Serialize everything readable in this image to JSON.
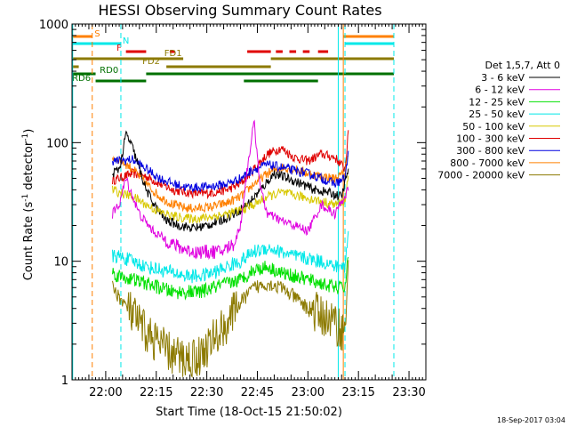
{
  "chart_data": {
    "type": "line",
    "title": "HESSI Observing Summary Count Rates",
    "xlabel": "Start Time (18-Oct-15 21:50:02)",
    "ylabel_main": "Count Rate (s",
    "ylabel_sup1": "-1",
    "ylabel_mid": " detector",
    "ylabel_sup2": "-1",
    "ylabel_end": ")",
    "footer": "18-Sep-2017 03:04",
    "x_start_min": 0,
    "x_end_min": 105,
    "x_ticks": [
      {
        "t": 10,
        "label": "22:00"
      },
      {
        "t": 25,
        "label": "22:15"
      },
      {
        "t": 40,
        "label": "22:30"
      },
      {
        "t": 55,
        "label": "22:45"
      },
      {
        "t": 70,
        "label": "23:00"
      },
      {
        "t": 85,
        "label": "23:15"
      },
      {
        "t": 100,
        "label": "23:30"
      }
    ],
    "y_scale": "log",
    "ylim": [
      1,
      1000
    ],
    "y_ticks": [
      {
        "v": 1,
        "label": "1"
      },
      {
        "v": 10,
        "label": "10"
      },
      {
        "v": 100,
        "label": "100"
      },
      {
        "v": 1000,
        "label": "1000"
      }
    ],
    "legend": {
      "title": "Det 1,5,7, Att 0",
      "position": "right",
      "entries": [
        {
          "label": "3 - 6 keV",
          "color": "#000000"
        },
        {
          "label": "6 - 12 keV",
          "color": "#e000e0"
        },
        {
          "label": "12 - 25 keV",
          "color": "#00e000"
        },
        {
          "label": "25 - 50 keV",
          "color": "#00e8e8"
        },
        {
          "label": "50 - 100 keV",
          "color": "#d8c800"
        },
        {
          "label": "100 - 300 keV",
          "color": "#e00000"
        },
        {
          "label": "300 - 800 keV",
          "color": "#0000e0"
        },
        {
          "label": "800 - 7000 keV",
          "color": "#ff8000"
        },
        {
          "label": "7000 - 20000 keV",
          "color": "#8c7a00"
        }
      ]
    },
    "series": [
      {
        "color": "#e00000",
        "t": [
          12,
          14,
          18,
          22,
          26,
          30,
          34,
          38,
          42,
          46,
          50,
          54,
          58,
          62,
          66,
          70,
          74,
          78,
          81,
          82
        ],
        "v": [
          48,
          50,
          55,
          52,
          45,
          40,
          38,
          37,
          38,
          40,
          45,
          60,
          80,
          90,
          75,
          70,
          80,
          75,
          60,
          120
        ]
      },
      {
        "color": "#ff8000",
        "t": [
          12,
          14,
          18,
          22,
          26,
          30,
          34,
          38,
          42,
          46,
          50,
          54,
          58,
          62,
          66,
          70,
          74,
          78,
          81,
          82
        ],
        "v": [
          75,
          72,
          60,
          45,
          35,
          30,
          28,
          28,
          29,
          31,
          35,
          45,
          55,
          62,
          60,
          55,
          52,
          50,
          55,
          85
        ]
      },
      {
        "color": "#0000e0",
        "t": [
          12,
          14,
          18,
          22,
          26,
          30,
          34,
          38,
          42,
          46,
          50,
          54,
          58,
          62,
          66,
          70,
          74,
          78,
          81,
          82
        ],
        "v": [
          70,
          70,
          72,
          60,
          50,
          45,
          42,
          42,
          43,
          45,
          50,
          60,
          65,
          62,
          58,
          55,
          50,
          45,
          50,
          80
        ]
      },
      {
        "color": "#000000",
        "t": [
          12,
          14,
          15,
          16,
          18,
          20,
          22,
          25,
          28,
          32,
          36,
          40,
          44,
          48,
          52,
          56,
          60,
          64,
          68,
          72,
          76,
          80,
          82
        ],
        "v": [
          55,
          60,
          80,
          120,
          90,
          60,
          40,
          28,
          22,
          20,
          19,
          20,
          22,
          25,
          30,
          40,
          55,
          50,
          45,
          40,
          38,
          35,
          60
        ]
      },
      {
        "color": "#d8c800",
        "t": [
          12,
          14,
          18,
          22,
          26,
          30,
          34,
          38,
          42,
          46,
          50,
          54,
          58,
          62,
          66,
          70,
          74,
          78,
          81,
          82
        ],
        "v": [
          40,
          38,
          35,
          30,
          26,
          24,
          23,
          23,
          24,
          25,
          27,
          30,
          35,
          38,
          36,
          34,
          32,
          30,
          32,
          55
        ]
      },
      {
        "color": "#e000e0",
        "t": [
          12,
          14,
          16,
          18,
          20,
          24,
          28,
          32,
          36,
          40,
          44,
          48,
          50,
          52,
          54,
          56,
          58,
          62,
          66,
          70,
          74,
          78,
          82
        ],
        "v": [
          25,
          30,
          50,
          35,
          25,
          18,
          15,
          13,
          12,
          12,
          12,
          14,
          20,
          60,
          150,
          40,
          25,
          22,
          20,
          18,
          30,
          25,
          40
        ]
      },
      {
        "color": "#00e8e8",
        "t": [
          12,
          14,
          18,
          22,
          26,
          30,
          34,
          38,
          42,
          46,
          50,
          54,
          58,
          62,
          66,
          70,
          74,
          78,
          81,
          82
        ],
        "v": [
          11,
          11,
          10,
          9,
          8.5,
          8,
          7.5,
          7.5,
          8,
          9,
          10,
          12,
          13,
          12,
          11,
          10.5,
          10,
          9,
          9,
          18
        ]
      },
      {
        "color": "#00e000",
        "t": [
          12,
          14,
          18,
          22,
          26,
          30,
          34,
          38,
          42,
          46,
          50,
          54,
          58,
          62,
          66,
          70,
          74,
          78,
          81,
          82
        ],
        "v": [
          8,
          7.5,
          7,
          6.5,
          6,
          5.5,
          5.5,
          5.5,
          6,
          6.5,
          7,
          8.5,
          9,
          8,
          7.5,
          7,
          6.5,
          6,
          6,
          12
        ]
      },
      {
        "color": "#8c7a00",
        "t": [
          12,
          14,
          18,
          22,
          26,
          30,
          34,
          38,
          42,
          46,
          50,
          54,
          58,
          62,
          66,
          70,
          74,
          78,
          81,
          82
        ],
        "v": [
          6,
          5,
          3.5,
          2.5,
          2,
          1.6,
          1.5,
          1.6,
          2.2,
          3,
          4.5,
          6,
          6.5,
          6,
          5,
          4,
          3.5,
          3,
          2.5,
          10
        ]
      }
    ],
    "vertical_lines": [
      {
        "t": 0.2,
        "color": "#00e8e8",
        "style": "solid"
      },
      {
        "t": 6,
        "color": "#ff8000",
        "style": "dashed"
      },
      {
        "t": 14.5,
        "color": "#00e8e8",
        "style": "dashed"
      },
      {
        "t": 79,
        "color": "#00e8e8",
        "style": "solid"
      },
      {
        "t": 80.5,
        "color": "#ff8000",
        "style": "solid"
      },
      {
        "t": 81,
        "color": "#00e8e8",
        "style": "dashed"
      },
      {
        "t": 95.5,
        "color": "#00e8e8",
        "style": "dashed"
      }
    ],
    "flag_bars": [
      {
        "label": "S",
        "color": "#ff8000",
        "segments": [
          [
            0,
            6
          ],
          [
            80.5,
            95.5
          ]
        ],
        "label_t": 7.5,
        "row": 0
      },
      {
        "label": "N",
        "color": "#00e8e8",
        "segments": [
          [
            0,
            14.5
          ],
          [
            81,
            95.5
          ]
        ],
        "label_t": 16,
        "row": 1
      },
      {
        "label": "F",
        "color": "#e00000",
        "segments": [
          [
            16,
            22
          ],
          [
            29,
            30.5
          ],
          [
            52,
            59
          ],
          [
            60.5,
            62.5
          ],
          [
            64.5,
            66.5
          ],
          [
            68.5,
            70.5
          ],
          [
            73,
            76
          ]
        ],
        "label_t": 14,
        "row": 2
      },
      {
        "label": "FD1",
        "color": "#8c7a00",
        "segments": [
          [
            0,
            33
          ],
          [
            59,
            95.5
          ]
        ],
        "label_t": 30,
        "row": 3
      },
      {
        "label": "FD2",
        "color": "#8c7a00",
        "segments": [
          [
            0,
            2
          ],
          [
            28,
            59
          ]
        ],
        "label_t": 23.5,
        "row": 4
      },
      {
        "label": "RD0",
        "color": "#007000",
        "segments": [
          [
            0,
            7
          ],
          [
            22,
            95.5
          ]
        ],
        "label_t": 11,
        "row": 5
      },
      {
        "label": "RD6",
        "color": "#007000",
        "segments": [
          [
            7,
            22
          ],
          [
            51,
            73
          ]
        ],
        "label_t": 2.8,
        "row": 6
      }
    ]
  }
}
